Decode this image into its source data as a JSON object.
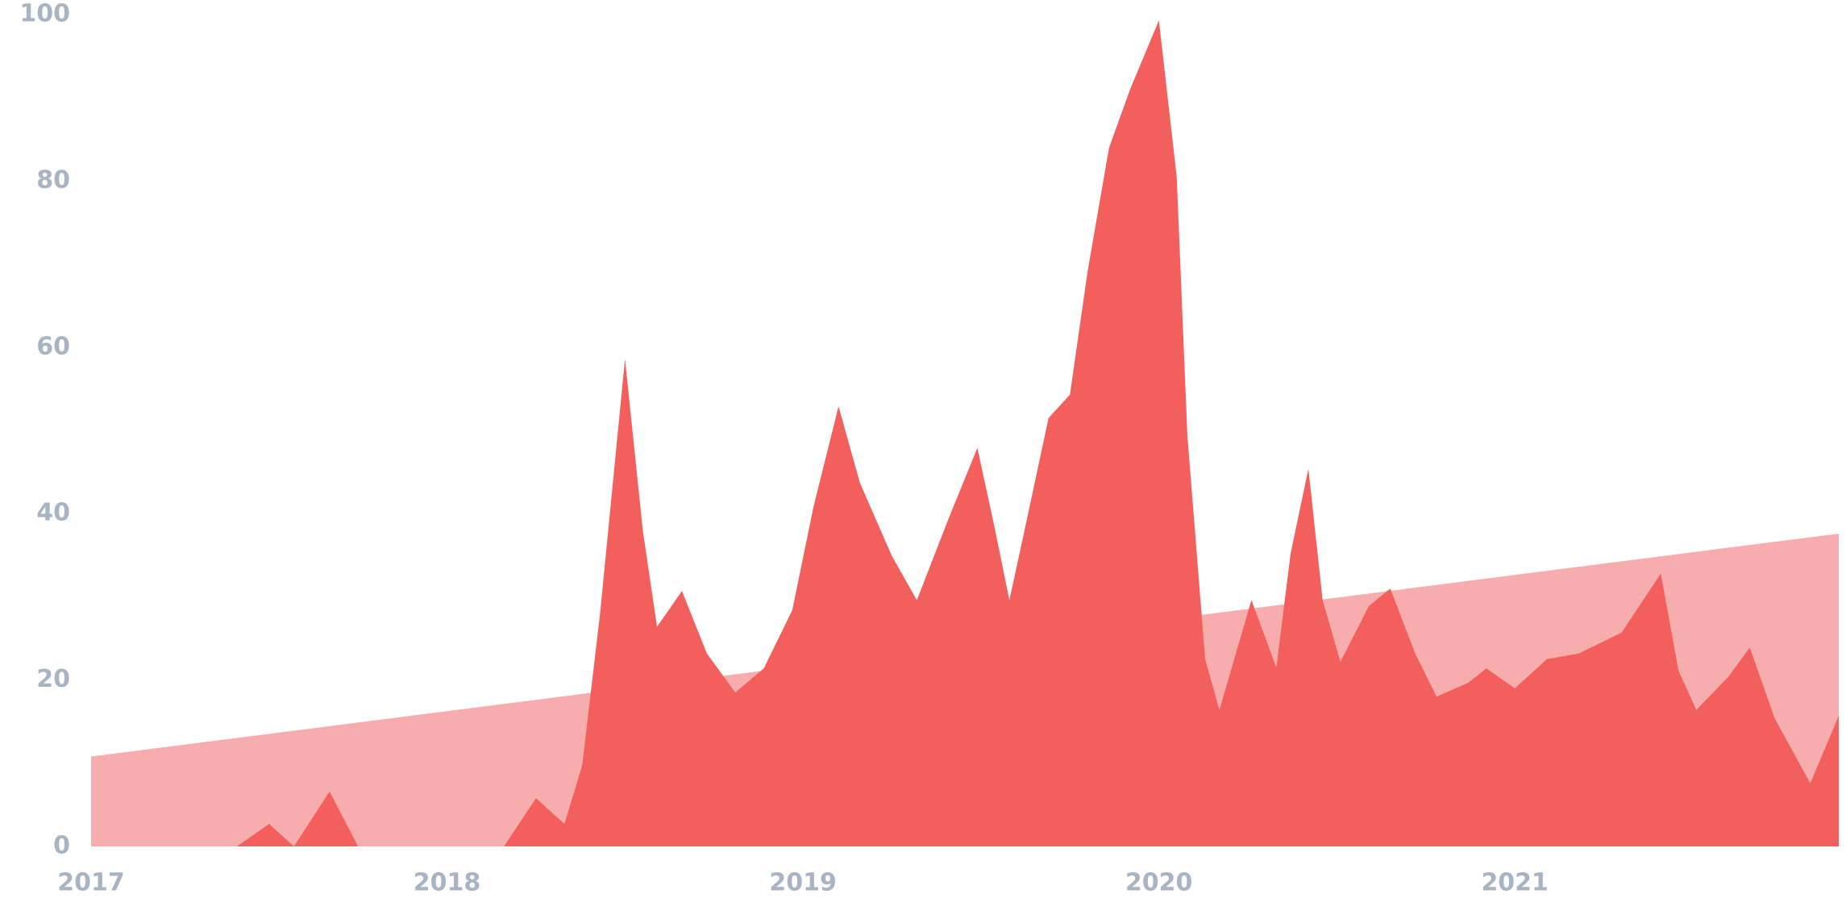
{
  "chart_data": {
    "type": "area",
    "xlim": [
      2017,
      2021.91
    ],
    "xticks": [
      2017,
      2018,
      2019,
      2020,
      2021
    ],
    "ylim": [
      0,
      100
    ],
    "yticks": [
      0,
      20,
      40,
      60,
      80,
      100
    ],
    "series": [
      {
        "color": "#f7adad",
        "x": [
          2017,
          2021.91
        ],
        "values": [
          10.8,
          37.6
        ]
      },
      {
        "color": "#f25f5c",
        "x": [
          2017.0,
          2017.41,
          2017.5,
          2017.57,
          2017.67,
          2017.75,
          2018.16,
          2018.25,
          2018.33,
          2018.38,
          2018.43,
          2018.5,
          2018.55,
          2018.59,
          2018.66,
          2018.73,
          2018.81,
          2018.89,
          2018.97,
          2019.03,
          2019.1,
          2019.16,
          2019.25,
          2019.32,
          2019.41,
          2019.49,
          2019.54,
          2019.58,
          2019.63,
          2019.69,
          2019.75,
          2019.8,
          2019.86,
          2019.92,
          2020.0,
          2020.05,
          2020.08,
          2020.13,
          2020.17,
          2020.26,
          2020.33,
          2020.37,
          2020.42,
          2020.46,
          2020.51,
          2020.59,
          2020.65,
          2020.72,
          2020.78,
          2020.87,
          2020.92,
          2021.0,
          2021.09,
          2021.18,
          2021.3,
          2021.41,
          2021.46,
          2021.51,
          2021.6,
          2021.66,
          2021.73,
          2021.83,
          2021.91
        ],
        "values": [
          0,
          0,
          2.7,
          0,
          6.6,
          0,
          0,
          5.8,
          2.7,
          9.8,
          28,
          58.6,
          38,
          26.4,
          30.7,
          23.2,
          18.5,
          21.4,
          28.4,
          40.9,
          52.9,
          43.7,
          34.9,
          29.6,
          39.5,
          47.9,
          38,
          29.6,
          39.5,
          51.5,
          54.3,
          69.2,
          84,
          91.1,
          99.3,
          80.5,
          49.4,
          22.5,
          16.4,
          29.6,
          21.5,
          35.2,
          45.4,
          29.6,
          22.2,
          28.9,
          31,
          23.2,
          18,
          19.7,
          21.4,
          19,
          22.5,
          23.2,
          25.7,
          32.8,
          21.1,
          16.4,
          20.4,
          23.9,
          15.4,
          7.6,
          15.7
        ]
      }
    ]
  }
}
